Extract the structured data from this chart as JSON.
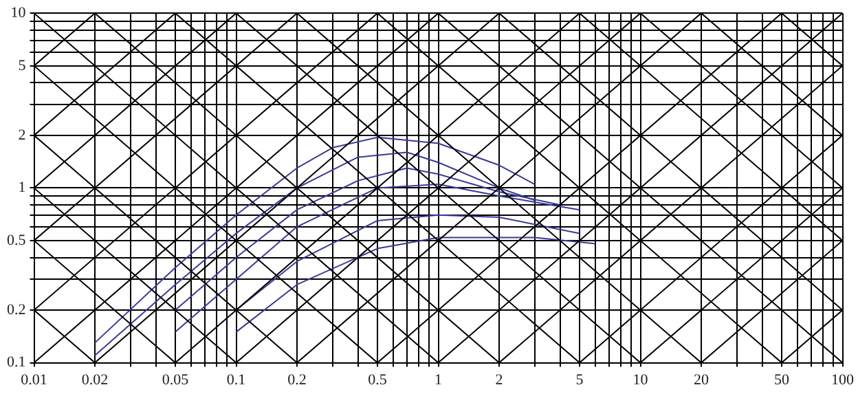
{
  "chart_data": {
    "type": "line",
    "log": "xy",
    "grid": true,
    "marker": "none",
    "line_style": "solid",
    "legend": false,
    "xlim": [
      0.01,
      100
    ],
    "ylim": [
      0.1,
      10
    ],
    "xticks": [
      0.01,
      0.02,
      {
        "value": 0.03,
        "label": null
      },
      {
        "value": 0.04,
        "label": null
      },
      0.05,
      {
        "value": 0.06,
        "label": null
      },
      {
        "value": 0.07,
        "label": null
      },
      {
        "value": 0.08,
        "label": null
      },
      {
        "value": 0.09,
        "label": null
      },
      0.1,
      0.2,
      {
        "value": 0.3,
        "label": null
      },
      {
        "value": 0.4,
        "label": null
      },
      0.5,
      {
        "value": 0.6,
        "label": null
      },
      {
        "value": 0.7,
        "label": null
      },
      {
        "value": 0.8,
        "label": null
      },
      {
        "value": 0.9,
        "label": null
      },
      1,
      2,
      {
        "value": 3,
        "label": null
      },
      {
        "value": 4,
        "label": null
      },
      5,
      {
        "value": 6,
        "label": null
      },
      {
        "value": 7,
        "label": null
      },
      {
        "value": 8,
        "label": null
      },
      {
        "value": 9,
        "label": null
      },
      10,
      20,
      {
        "value": 30,
        "label": null
      },
      {
        "value": 40,
        "label": null
      },
      50,
      {
        "value": 60,
        "label": null
      },
      {
        "value": 70,
        "label": null
      },
      {
        "value": 80,
        "label": null
      },
      {
        "value": 90,
        "label": null
      },
      100
    ],
    "yticks": [
      0.1,
      0.2,
      {
        "value": 0.3,
        "label": null
      },
      {
        "value": 0.4,
        "label": null
      },
      0.5,
      {
        "value": 0.6,
        "label": null
      },
      {
        "value": 0.7,
        "label": null
      },
      {
        "value": 0.8,
        "label": null
      },
      {
        "value": 0.9,
        "label": null
      },
      1,
      2,
      {
        "value": 3,
        "label": null
      },
      {
        "value": 4,
        "label": null
      },
      5,
      {
        "value": 6,
        "label": null
      },
      {
        "value": 7,
        "label": null
      },
      {
        "value": 8,
        "label": null
      },
      {
        "value": 9,
        "label": null
      },
      10
    ],
    "series": [
      {
        "color": "#000000",
        "x": [
          50,
          100
        ],
        "values": [
          0.1,
          0.2
        ]
      },
      {
        "color": "#000000",
        "x": [
          20,
          100
        ],
        "values": [
          0.1,
          0.5
        ]
      },
      {
        "color": "#000000",
        "x": [
          10,
          100
        ],
        "values": [
          0.1,
          1
        ]
      },
      {
        "color": "#000000",
        "x": [
          5,
          100
        ],
        "values": [
          0.1,
          2
        ]
      },
      {
        "color": "#000000",
        "x": [
          2,
          100
        ],
        "values": [
          0.1,
          5
        ]
      },
      {
        "color": "#000000",
        "x": [
          1,
          100
        ],
        "values": [
          0.1,
          10
        ]
      },
      {
        "color": "#000000",
        "x": [
          0.5,
          50
        ],
        "values": [
          0.1,
          10
        ]
      },
      {
        "color": "#000000",
        "x": [
          0.2,
          20
        ],
        "values": [
          0.1,
          10
        ]
      },
      {
        "color": "#000000",
        "x": [
          0.1,
          10
        ],
        "values": [
          0.1,
          10
        ]
      },
      {
        "color": "#000000",
        "x": [
          0.05,
          5
        ],
        "values": [
          0.1,
          10
        ]
      },
      {
        "color": "#000000",
        "x": [
          0.02,
          2
        ],
        "values": [
          0.1,
          10
        ]
      },
      {
        "color": "#000000",
        "x": [
          0.01,
          1
        ],
        "values": [
          0.1,
          10
        ]
      },
      {
        "color": "#000000",
        "x": [
          0.01,
          0.5
        ],
        "values": [
          0.2,
          10
        ]
      },
      {
        "color": "#000000",
        "x": [
          0.01,
          0.2
        ],
        "values": [
          0.5,
          10
        ]
      },
      {
        "color": "#000000",
        "x": [
          0.01,
          0.1
        ],
        "values": [
          1,
          10
        ]
      },
      {
        "color": "#000000",
        "x": [
          0.01,
          0.05
        ],
        "values": [
          2,
          10
        ]
      },
      {
        "color": "#000000",
        "x": [
          0.01,
          0.02
        ],
        "values": [
          5,
          10
        ]
      },
      {
        "color": "#000000",
        "x": [
          0.01,
          0.02
        ],
        "values": [
          0.2,
          0.1
        ]
      },
      {
        "color": "#000000",
        "x": [
          0.01,
          0.05
        ],
        "values": [
          0.5,
          0.1
        ]
      },
      {
        "color": "#000000",
        "x": [
          0.01,
          0.1
        ],
        "values": [
          1,
          0.1
        ]
      },
      {
        "color": "#000000",
        "x": [
          0.01,
          0.2
        ],
        "values": [
          2,
          0.1
        ]
      },
      {
        "color": "#000000",
        "x": [
          0.01,
          0.5
        ],
        "values": [
          5,
          0.1
        ]
      },
      {
        "color": "#000000",
        "x": [
          0.01,
          1
        ],
        "values": [
          10,
          0.1
        ]
      },
      {
        "color": "#000000",
        "x": [
          0.02,
          2
        ],
        "values": [
          10,
          0.1
        ]
      },
      {
        "color": "#000000",
        "x": [
          0.05,
          5
        ],
        "values": [
          10,
          0.1
        ]
      },
      {
        "color": "#000000",
        "x": [
          0.1,
          10
        ],
        "values": [
          10,
          0.1
        ]
      },
      {
        "color": "#000000",
        "x": [
          0.2,
          20
        ],
        "values": [
          10,
          0.1
        ]
      },
      {
        "color": "#000000",
        "x": [
          0.5,
          50
        ],
        "values": [
          10,
          0.1
        ]
      },
      {
        "color": "#000000",
        "x": [
          1,
          100
        ],
        "values": [
          10,
          0.1
        ]
      },
      {
        "color": "#000000",
        "x": [
          2,
          100
        ],
        "values": [
          10,
          0.2
        ]
      },
      {
        "color": "#000000",
        "x": [
          5,
          100
        ],
        "values": [
          10,
          0.5
        ]
      },
      {
        "color": "#000000",
        "x": [
          10,
          100
        ],
        "values": [
          10,
          1
        ]
      },
      {
        "color": "#000000",
        "x": [
          20,
          100
        ],
        "values": [
          10,
          2
        ]
      },
      {
        "color": "#000000",
        "x": [
          50,
          100
        ],
        "values": [
          10,
          5
        ]
      },
      {
        "color": "#3a3a9a",
        "x": [
          0.02,
          0.05,
          0.1,
          0.2,
          0.3,
          0.5,
          1,
          2,
          3
        ],
        "values": [
          0.13,
          0.35,
          0.7,
          1.3,
          1.7,
          1.95,
          1.8,
          1.35,
          1.05
        ]
      },
      {
        "color": "#3a3a9a",
        "x": [
          0.02,
          0.05,
          0.1,
          0.2,
          0.4,
          0.7,
          1,
          2,
          3
        ],
        "values": [
          0.11,
          0.28,
          0.55,
          1.0,
          1.5,
          1.6,
          1.4,
          1.0,
          0.85
        ]
      },
      {
        "color": "#3a3a9a",
        "x": [
          0.05,
          0.1,
          0.2,
          0.4,
          0.7,
          1,
          2,
          4
        ],
        "values": [
          0.2,
          0.4,
          0.75,
          1.1,
          1.3,
          1.2,
          0.95,
          0.8
        ]
      },
      {
        "color": "#3a3a9a",
        "x": [
          0.05,
          0.1,
          0.2,
          0.5,
          1,
          2,
          5
        ],
        "values": [
          0.15,
          0.3,
          0.6,
          1.0,
          1.05,
          0.9,
          0.75
        ]
      },
      {
        "color": "#3a3a9a",
        "x": [
          0.1,
          0.2,
          0.5,
          1,
          2,
          5
        ],
        "values": [
          0.2,
          0.38,
          0.65,
          0.7,
          0.68,
          0.55
        ]
      },
      {
        "color": "#3a3a9a",
        "x": [
          0.1,
          0.2,
          0.5,
          1,
          3,
          6
        ],
        "values": [
          0.15,
          0.28,
          0.45,
          0.52,
          0.52,
          0.48
        ]
      }
    ]
  }
}
